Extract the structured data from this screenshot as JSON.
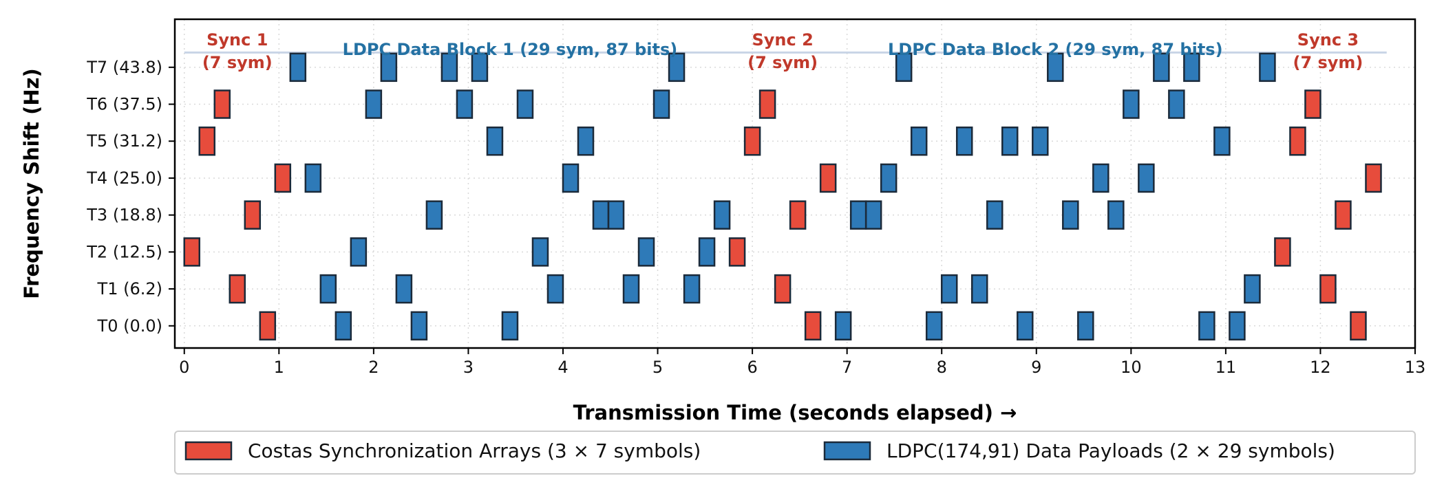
{
  "chart_data": {
    "type": "scatter",
    "marker": "rectangle",
    "xlabel": "Transmission Time (seconds elapsed) →",
    "ylabel": "Frequency Shift (Hz)",
    "xlim": [
      -0.1,
      13.0
    ],
    "ylim": [
      -0.6,
      8.3
    ],
    "x_ticks": [
      0,
      1,
      2,
      3,
      4,
      5,
      6,
      7,
      8,
      9,
      10,
      11,
      12,
      13
    ],
    "y_ticks": [
      {
        "value": 0,
        "label": "T0 (0.0)"
      },
      {
        "value": 1,
        "label": "T1 (6.2)"
      },
      {
        "value": 2,
        "label": "T2 (12.5)"
      },
      {
        "value": 3,
        "label": "T3 (18.8)"
      },
      {
        "value": 4,
        "label": "T4 (25.0)"
      },
      {
        "value": 5,
        "label": "T5 (31.2)"
      },
      {
        "value": 6,
        "label": "T6 (37.5)"
      },
      {
        "value": 7,
        "label": "T7 (43.8)"
      }
    ],
    "grid": true,
    "legend_position": "bottom",
    "series": [
      {
        "name": "Costas Synchronization Arrays (3 × 7 symbols)",
        "color": "#e74c3c",
        "x": [
          0.08,
          0.24,
          0.4,
          0.56,
          0.72,
          0.88,
          1.04,
          5.84,
          6.0,
          6.16,
          6.32,
          6.48,
          6.64,
          6.8,
          11.6,
          11.76,
          11.92,
          12.08,
          12.24,
          12.4,
          12.56
        ],
        "y": [
          2,
          5,
          6,
          1,
          3,
          0,
          4,
          2,
          5,
          6,
          1,
          3,
          0,
          4,
          2,
          5,
          6,
          1,
          3,
          0,
          4
        ]
      },
      {
        "name": "LDPC(174,91) Data Payloads (2 × 29 symbols)",
        "color": "#2e7ab8",
        "x": [
          1.2,
          1.36,
          1.52,
          1.68,
          1.84,
          2.0,
          2.16,
          2.32,
          2.48,
          2.64,
          2.8,
          2.96,
          3.12,
          3.28,
          3.44,
          3.6,
          3.76,
          3.92,
          4.08,
          4.24,
          4.4,
          4.56,
          4.72,
          4.88,
          5.04,
          5.2,
          5.36,
          5.52,
          5.68,
          6.96,
          7.12,
          7.28,
          7.44,
          7.6,
          7.76,
          7.92,
          8.08,
          8.24,
          8.4,
          8.56,
          8.72,
          8.88,
          9.04,
          9.2,
          9.36,
          9.52,
          9.68,
          9.84,
          10.0,
          10.16,
          10.32,
          10.48,
          10.64,
          10.8,
          10.96,
          11.12,
          11.28,
          11.44
        ],
        "y": [
          7,
          4,
          1,
          0,
          2,
          6,
          7,
          1,
          0,
          3,
          7,
          6,
          7,
          5,
          0,
          6,
          2,
          1,
          4,
          5,
          3,
          3,
          1,
          2,
          6,
          7,
          1,
          2,
          3,
          0,
          3,
          3,
          4,
          7,
          5,
          0,
          1,
          5,
          1,
          3,
          5,
          0,
          5,
          7,
          3,
          0,
          4,
          3,
          6,
          4,
          7,
          6,
          7,
          0,
          5,
          0,
          1,
          7
        ]
      }
    ],
    "annotations": [
      {
        "text": "Sync 1\n(7 sym)",
        "x": 0.56,
        "color": "#c0392b"
      },
      {
        "text": "LDPC Data Block 1 (29 sym, 87 bits)",
        "x": 3.44,
        "color": "#2471a3"
      },
      {
        "text": "Sync 2\n(7 sym)",
        "x": 6.32,
        "color": "#c0392b"
      },
      {
        "text": "LDPC Data Block 2 (29 sym, 87 bits)",
        "x": 9.2,
        "color": "#2471a3"
      },
      {
        "text": "Sync 3\n(7 sym)",
        "x": 12.08,
        "color": "#c0392b"
      }
    ],
    "reference_line": {
      "y": 7.4,
      "x_range": [
        0.0,
        12.7
      ],
      "color": "#c8d4e6"
    }
  }
}
